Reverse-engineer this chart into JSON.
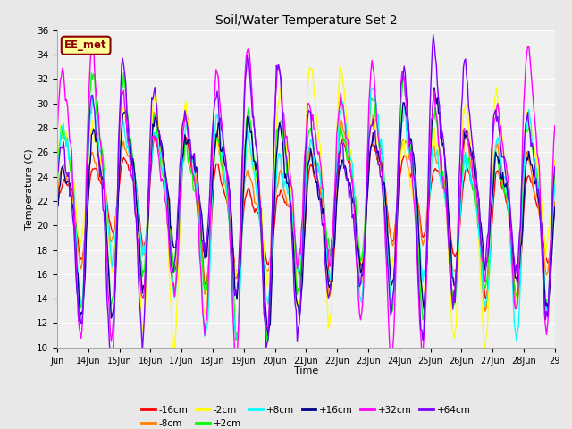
{
  "title": "Soil/Water Temperature Set 2",
  "xlabel": "Time",
  "ylabel": "Temperature (C)",
  "ylim": [
    10,
    36
  ],
  "yticks": [
    10,
    12,
    14,
    16,
    18,
    20,
    22,
    24,
    26,
    28,
    30,
    32,
    34,
    36
  ],
  "annotation": "EE_met",
  "annotation_color": "#8B0000",
  "annotation_bg": "#FFFF99",
  "series": [
    {
      "label": "-16cm",
      "color": "#FF0000"
    },
    {
      "label": "-8cm",
      "color": "#FF8000"
    },
    {
      "label": "-2cm",
      "color": "#FFFF00"
    },
    {
      "label": "+2cm",
      "color": "#00FF00"
    },
    {
      "label": "+8cm",
      "color": "#00FFFF"
    },
    {
      "label": "+16cm",
      "color": "#00008B"
    },
    {
      "label": "+32cm",
      "color": "#FF00FF"
    },
    {
      "label": "+64cm",
      "color": "#8000FF"
    }
  ],
  "n_points": 480,
  "x_start": 13.0,
  "x_end": 29.0,
  "xtick_labels": [
    "Jun",
    "14Jun",
    "15Jun",
    "16Jun",
    "17Jun",
    "18Jun",
    "19Jun",
    "20Jun",
    "21Jun",
    "22Jun",
    "23Jun",
    "24Jun",
    "25Jun",
    "26Jun",
    "27Jun",
    "28Jun",
    "29"
  ],
  "xtick_positions": [
    13.0,
    14.0,
    15.0,
    16.0,
    17.0,
    18.0,
    19.0,
    20.0,
    21.0,
    22.0,
    23.0,
    24.0,
    25.0,
    26.0,
    27.0,
    28.0,
    29.0
  ],
  "background_color": "#E8E8E8",
  "plot_bg_color": "#F0F0F0",
  "grid_color": "#FFFFFF",
  "linewidth": 1.0
}
